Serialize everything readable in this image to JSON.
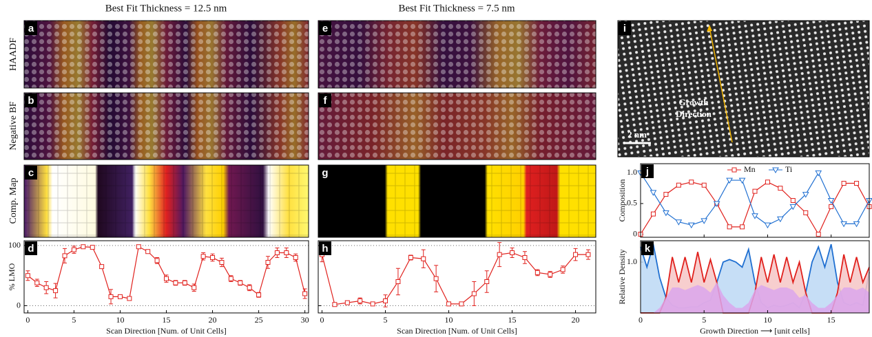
{
  "columns": [
    {
      "title": "Best Fit Thickness = 12.5 nm"
    },
    {
      "title": "Best Fit Thickness = 7.5 nm"
    }
  ],
  "row_labels": [
    "HAADF",
    "Negative BF",
    "Comp. Map"
  ],
  "image_panels": [
    {
      "label": "a"
    },
    {
      "label": "b"
    },
    {
      "label": "c"
    },
    {
      "label": "e"
    },
    {
      "label": "f"
    },
    {
      "label": "g"
    },
    {
      "label": "i",
      "annotation": [
        "Growth",
        "Direction"
      ],
      "scale_bar": "2 nm"
    }
  ],
  "chart_data": [
    {
      "type": "line",
      "label": "d",
      "ylabel": "% LMO",
      "xlabel": "Scan Direction [Num. of Unit Cells]",
      "x": [
        0,
        1,
        2,
        3,
        4,
        5,
        6,
        7,
        8,
        9,
        10,
        11,
        12,
        13,
        14,
        15,
        16,
        17,
        18,
        19,
        20,
        21,
        22,
        23,
        24,
        25,
        26,
        27,
        28,
        29,
        30
      ],
      "series": [
        {
          "color": "#e0201c",
          "marker": "square",
          "values": [
            50,
            38,
            30,
            25,
            83,
            93,
            98,
            97,
            65,
            15,
            15,
            12,
            98,
            90,
            75,
            45,
            38,
            38,
            30,
            82,
            80,
            72,
            45,
            38,
            30,
            18,
            72,
            88,
            88,
            80,
            20
          ],
          "errors": [
            8,
            6,
            10,
            12,
            12,
            6,
            3,
            3,
            3,
            12,
            3,
            3,
            3,
            3,
            5,
            6,
            4,
            4,
            6,
            6,
            6,
            7,
            5,
            4,
            5,
            4,
            10,
            8,
            8,
            6,
            8
          ]
        }
      ],
      "xlim": [
        -0.4,
        30.4
      ],
      "xticks": [
        0,
        5,
        10,
        15,
        20,
        25,
        30
      ],
      "ylim": [
        -12,
        108
      ],
      "yticks": [
        0,
        100
      ],
      "grid": true
    },
    {
      "type": "line",
      "label": "h",
      "xlabel": "Scan Direction [Num. of Unit Cells]",
      "x": [
        0,
        1,
        2,
        3,
        4,
        5,
        6,
        7,
        8,
        9,
        10,
        11,
        12,
        13,
        14,
        15,
        16,
        17,
        18,
        19,
        20,
        21
      ],
      "series": [
        {
          "color": "#e0201c",
          "marker": "square",
          "values": [
            85,
            2,
            5,
            8,
            3,
            8,
            40,
            80,
            78,
            45,
            3,
            3,
            20,
            40,
            85,
            88,
            80,
            55,
            52,
            60,
            85,
            85
          ],
          "errors": [
            12,
            2,
            3,
            5,
            3,
            10,
            22,
            4,
            15,
            22,
            2,
            3,
            20,
            18,
            20,
            8,
            10,
            5,
            5,
            6,
            10,
            8
          ]
        }
      ],
      "xlim": [
        -0.3,
        21.6
      ],
      "xticks": [
        0,
        5,
        10,
        15,
        20
      ],
      "ylim": [
        -12,
        108
      ],
      "yticks": [
        0,
        100
      ],
      "show_ytick_labels": false,
      "grid": true
    },
    {
      "type": "line",
      "label": "j",
      "ylabel": "Composition",
      "legend": "top",
      "x": [
        0,
        1,
        2,
        3,
        4,
        5,
        6,
        7,
        8,
        9,
        10,
        11,
        12,
        13,
        14,
        15,
        16,
        17,
        18
      ],
      "series": [
        {
          "name": "Mn",
          "color": "#e0201c",
          "marker": "square",
          "values": [
            0,
            0.33,
            0.65,
            0.8,
            0.85,
            0.8,
            0.5,
            0.12,
            0.12,
            0.7,
            0.85,
            0.75,
            0.55,
            0.35,
            0,
            0.45,
            0.83,
            0.83,
            0.45
          ]
        },
        {
          "name": "Ti",
          "color": "#1f6fd1",
          "marker": "triangle-down",
          "values": [
            1,
            0.68,
            0.35,
            0.2,
            0.15,
            0.22,
            0.5,
            0.88,
            0.88,
            0.3,
            0.15,
            0.25,
            0.45,
            0.65,
            1,
            0.55,
            0.17,
            0.17,
            0.55
          ]
        }
      ],
      "xlim": [
        0,
        18
      ],
      "xticks": [
        0,
        5,
        10,
        15
      ],
      "show_xtick_labels": false,
      "ylim": [
        -0.05,
        1.15
      ],
      "yticks": [
        0,
        0.5,
        {
          "value": 1,
          "label": "1.0"
        }
      ],
      "grid": false
    },
    {
      "type": "area",
      "label": "k",
      "ylabel": "Relative Density",
      "xlabel": "Growth Direction ⟶ [unit cells]",
      "x": [
        0,
        0.5,
        1,
        1.5,
        2,
        2.5,
        3,
        3.5,
        4,
        4.5,
        5,
        5.5,
        6,
        6.5,
        7,
        7.5,
        8,
        8.5,
        9,
        9.5,
        10,
        10.5,
        11,
        11.5,
        12,
        12.5,
        13,
        13.5,
        14,
        14.5,
        15,
        15.5,
        16,
        16.5,
        17,
        17.5,
        18
      ],
      "series": [
        {
          "color": "#bcd8f4",
          "line_color": "#1f6fd1",
          "values": [
            1.3,
            0.9,
            1.35,
            0.7,
            0.3,
            0.15,
            0.1,
            0.1,
            0.12,
            0.12,
            0.2,
            0.25,
            0.6,
            1.0,
            1.05,
            1.0,
            0.9,
            1.25,
            0.6,
            0.2,
            0.1,
            0.15,
            0.12,
            0.15,
            0.2,
            0.1,
            0.4,
            1.0,
            1.3,
            0.9,
            1.35,
            0.6,
            0.2,
            0.15,
            0.2,
            0.15,
            0.8
          ]
        },
        {
          "color": "#f6c6c6",
          "line_color": "#e0201c",
          "values": [
            0,
            0,
            0,
            0,
            0.3,
            1.1,
            0.6,
            1.1,
            0.6,
            1.2,
            0.6,
            1.05,
            0.6,
            0,
            0,
            0,
            0,
            0,
            0.4,
            1.1,
            0.6,
            1.15,
            0.6,
            1.1,
            0.6,
            1.0,
            0.4,
            0,
            0,
            0,
            0,
            0.4,
            1.15,
            0.6,
            1.1,
            0.6,
            0.9
          ]
        },
        {
          "color": "#dba6ec",
          "values": [
            0,
            0,
            0,
            0.1,
            0.3,
            0.5,
            0.5,
            0.45,
            0.5,
            0.55,
            0.5,
            0.4,
            0.6,
            0.35,
            0.2,
            0.1,
            0.1,
            0.2,
            0.45,
            0.55,
            0.5,
            0.45,
            0.5,
            0.5,
            0.45,
            0.3,
            0.35,
            0.2,
            0.1,
            0.1,
            0.2,
            0.35,
            0.5,
            0.5,
            0.45,
            0.5,
            0.4
          ]
        }
      ],
      "xlim": [
        0,
        18
      ],
      "xticks": [
        0,
        5,
        10,
        15
      ],
      "ylim": [
        0,
        1.42
      ],
      "yticks": [
        {
          "value": 1,
          "label": "1.0"
        }
      ],
      "grid": false
    }
  ]
}
